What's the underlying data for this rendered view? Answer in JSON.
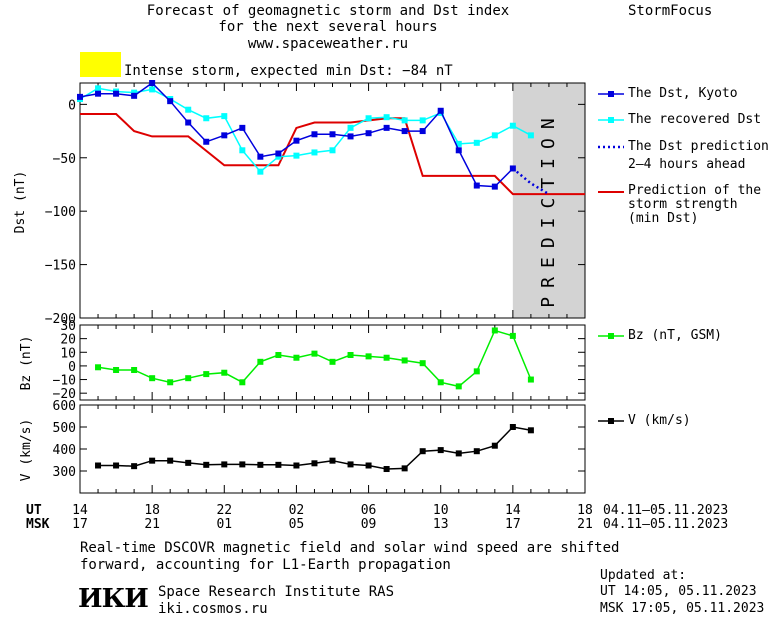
{
  "header": {
    "title": "Forecast of geomagnetic storm and Dst index",
    "subtitle": "for the next several hours",
    "site": "www.spaceweather.ru",
    "brand": "StormFocus"
  },
  "alert": {
    "text": "Intense storm, expected min Dst: −84 nT",
    "color": "#ffff00"
  },
  "legend": {
    "dst_kyoto": "The Dst, Kyoto",
    "recovered": "The recovered Dst",
    "prediction_line1": "The Dst prediction",
    "prediction_line2": "2–4 hours ahead",
    "strength_line1": "Prediction of the",
    "strength_line2": "storm strength",
    "strength_line3": "(min Dst)",
    "bz": "Bz (nT, GSM)",
    "v": "V (km/s)"
  },
  "prediction_band_label": "PREDICTION",
  "time_axis": {
    "ut_label": "UT",
    "msk_label": "MSK",
    "ut_ticks": [
      "14",
      "18",
      "22",
      "02",
      "06",
      "10",
      "14",
      "18"
    ],
    "msk_ticks": [
      "17",
      "21",
      "01",
      "05",
      "09",
      "13",
      "17",
      "21"
    ],
    "date_range_ut": "04.11–05.11.2023",
    "date_range_msk": "04.11–05.11.2023"
  },
  "footer": {
    "note_line1": "Real-time DSCOVR magnetic field and solar wind speed are shifted",
    "note_line2": "forward, accounting for L1-Earth propagation",
    "logo": "ИКИ",
    "institute": "Space Research Institute RAS",
    "institute_site": "iki.cosmos.ru",
    "updated_label": "Updated at:",
    "updated_ut": "UT  14:05, 05.11.2023",
    "updated_msk": "MSK 17:05, 05.11.2023"
  },
  "colors": {
    "dst_kyoto": "#0000dd",
    "recovered": "#00ffff",
    "prediction": "#0000dd",
    "strength": "#dd0000",
    "bz": "#00ee00",
    "v": "#000000",
    "prediction_band": "#d3d3d3"
  },
  "chart_data": [
    {
      "type": "line",
      "title": "",
      "xlabel": "",
      "ylabel": "Dst (nT)",
      "x_unit": "hours from 14 UT 04.11.2023",
      "xlim": [
        0,
        28
      ],
      "ylim": [
        -200,
        20
      ],
      "y_ticks": [
        0,
        -50,
        -100,
        -150,
        -200
      ],
      "y_tick_labels": [
        "0",
        "−50",
        "−100",
        "−150",
        "−200"
      ],
      "prediction_start_x": 24,
      "series": [
        {
          "name": "The Dst, Kyoto",
          "style": "line-square",
          "x": [
            0,
            1,
            2,
            3,
            4,
            5,
            6,
            7,
            8,
            9,
            10,
            11,
            12,
            13,
            14,
            15,
            16,
            17,
            18,
            19,
            20,
            21,
            22,
            23,
            24
          ],
          "y": [
            7,
            10,
            10,
            8,
            20,
            3,
            -17,
            -35,
            -29,
            -22,
            -49,
            -46,
            -34,
            -28,
            -28,
            -30,
            -27,
            -22,
            -25,
            -25,
            -6,
            -43,
            -76,
            -77,
            -60
          ]
        },
        {
          "name": "The recovered Dst",
          "style": "line-square",
          "x": [
            0,
            1,
            2,
            3,
            4,
            5,
            6,
            7,
            8,
            9,
            10,
            11,
            12,
            13,
            14,
            15,
            16,
            17,
            18,
            19,
            20,
            21,
            22,
            23,
            24,
            25
          ],
          "y": [
            5,
            15,
            12,
            11,
            14,
            5,
            -5,
            -13,
            -11,
            -43,
            -63,
            -49,
            -48,
            -45,
            -43,
            -22,
            -13,
            -12,
            -15,
            -15,
            -8,
            -37,
            -36,
            -29,
            -20,
            -29
          ]
        },
        {
          "name": "The Dst prediction 2–4 hours ahead",
          "style": "dotted",
          "x": [
            24,
            25,
            26
          ],
          "y": [
            -60,
            -74,
            -84
          ]
        },
        {
          "name": "Prediction of the storm strength (min Dst)",
          "style": "step-line",
          "x": [
            0,
            2,
            3,
            4,
            6,
            8,
            11,
            12,
            13,
            15,
            17,
            18,
            19,
            22,
            23,
            24,
            28
          ],
          "y": [
            -9,
            -9,
            -25,
            -30,
            -30,
            -57,
            -57,
            -22,
            -17,
            -17,
            -13,
            -13,
            -67,
            -67,
            -67,
            -84,
            -84
          ]
        }
      ]
    },
    {
      "type": "line",
      "title": "",
      "xlabel": "",
      "ylabel": "Bz (nT)",
      "xlim": [
        0,
        28
      ],
      "ylim": [
        -25,
        30
      ],
      "y_ticks": [
        30,
        20,
        10,
        0,
        -10,
        -20
      ],
      "y_tick_labels": [
        "30",
        "20",
        "10",
        "0",
        "−10",
        "−20"
      ],
      "series": [
        {
          "name": "Bz (nT, GSM)",
          "style": "line-square",
          "x": [
            1,
            2,
            3,
            4,
            5,
            6,
            7,
            8,
            9,
            10,
            11,
            12,
            13,
            14,
            15,
            16,
            17,
            18,
            19,
            20,
            21,
            22,
            23,
            24,
            25
          ],
          "y": [
            -1,
            -3,
            -3,
            -9,
            -12,
            -9,
            -6,
            -5,
            -12,
            3,
            8,
            6,
            9,
            3,
            8,
            7,
            6,
            4,
            2,
            -12,
            -15,
            -4,
            26,
            22,
            -10
          ]
        }
      ]
    },
    {
      "type": "line",
      "title": "",
      "xlabel": "",
      "ylabel": "V (km/s)",
      "xlim": [
        0,
        28
      ],
      "ylim": [
        200,
        600
      ],
      "y_ticks": [
        600,
        500,
        400,
        300
      ],
      "y_tick_labels": [
        "600",
        "500",
        "400",
        "300"
      ],
      "series": [
        {
          "name": "V (km/s)",
          "style": "line-square",
          "x": [
            1,
            2,
            3,
            4,
            5,
            6,
            7,
            8,
            9,
            10,
            11,
            12,
            13,
            14,
            15,
            16,
            17,
            18,
            19,
            20,
            21,
            22,
            23,
            24,
            25
          ],
          "y": [
            325,
            325,
            322,
            347,
            347,
            337,
            328,
            330,
            330,
            328,
            328,
            325,
            335,
            347,
            330,
            325,
            309,
            312,
            390,
            395,
            380,
            390,
            415,
            500,
            485
          ]
        }
      ]
    }
  ]
}
